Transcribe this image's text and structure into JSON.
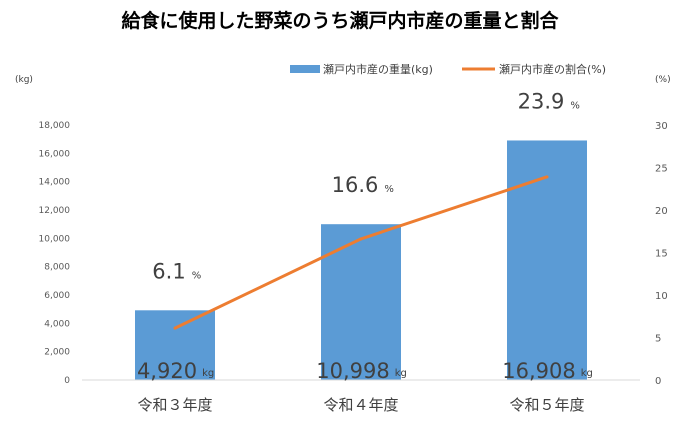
{
  "chart_data": {
    "type": "bar",
    "title": "給食に使用した野菜のうち瀬戸内市産の重量と割合",
    "categories": [
      "令和３年度",
      "令和４年度",
      "令和５年度"
    ],
    "y_unit_label": "(kg)",
    "y2_unit_label": "(%)",
    "ylim": [
      0,
      18000
    ],
    "yticks": [
      "0",
      "2,000",
      "4,000",
      "6,000",
      "8,000",
      "10,000",
      "12,000",
      "14,000",
      "16,000",
      "18,000"
    ],
    "ytick_values": [
      0,
      2000,
      4000,
      6000,
      8000,
      10000,
      12000,
      14000,
      16000,
      18000
    ],
    "y2lim": [
      0,
      30
    ],
    "y2ticks": [
      "0",
      "5",
      "10",
      "15",
      "20",
      "25",
      "30"
    ],
    "y2tick_values": [
      0,
      5,
      10,
      15,
      20,
      25,
      30
    ],
    "grid": false,
    "legend_position": "top-right",
    "series": [
      {
        "name": "瀬戸内市産の重量(kg)",
        "type": "bar",
        "axis": "left",
        "color": "#5b9bd5",
        "values": [
          4920,
          10998,
          16908
        ],
        "value_labels": [
          "4,920",
          "10,998",
          "16,908"
        ],
        "unit": "kg"
      },
      {
        "name": "瀬戸内市産の割合(%)",
        "type": "line",
        "axis": "right",
        "color": "#ed7d31",
        "values": [
          6.1,
          16.6,
          23.9
        ],
        "value_labels": [
          "6.1",
          "16.6",
          "23.9"
        ],
        "unit": "%"
      }
    ]
  }
}
